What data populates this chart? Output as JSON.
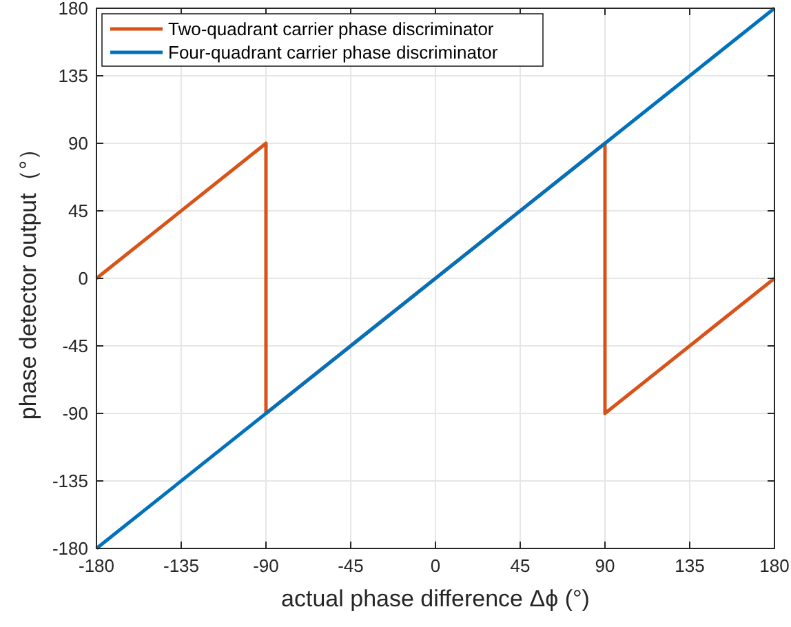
{
  "chart_data": {
    "type": "line",
    "xlabel": "actual phase difference Δϕ (°)",
    "ylabel": "phase detector output（°）",
    "series": [
      {
        "name": "Two-quadrant carrier phase discriminator",
        "color": "#d95319",
        "x": [
          -180,
          -90,
          -90,
          90,
          90,
          180
        ],
        "values": [
          0,
          90,
          -90,
          90,
          -90,
          0
        ]
      },
      {
        "name": "Four-quadrant carrier phase discriminator",
        "color": "#0072bd",
        "x": [
          -180,
          180
        ],
        "values": [
          -180,
          180
        ]
      }
    ],
    "xlim": [
      -180,
      180
    ],
    "ylim": [
      -180,
      180
    ],
    "xticks": [
      -180,
      -135,
      -90,
      -45,
      0,
      45,
      90,
      135,
      180
    ],
    "yticks": [
      -180,
      -135,
      -90,
      -45,
      0,
      45,
      90,
      135,
      180
    ],
    "grid": true,
    "legend": "top left",
    "line_style": "solid",
    "marker": "none"
  }
}
